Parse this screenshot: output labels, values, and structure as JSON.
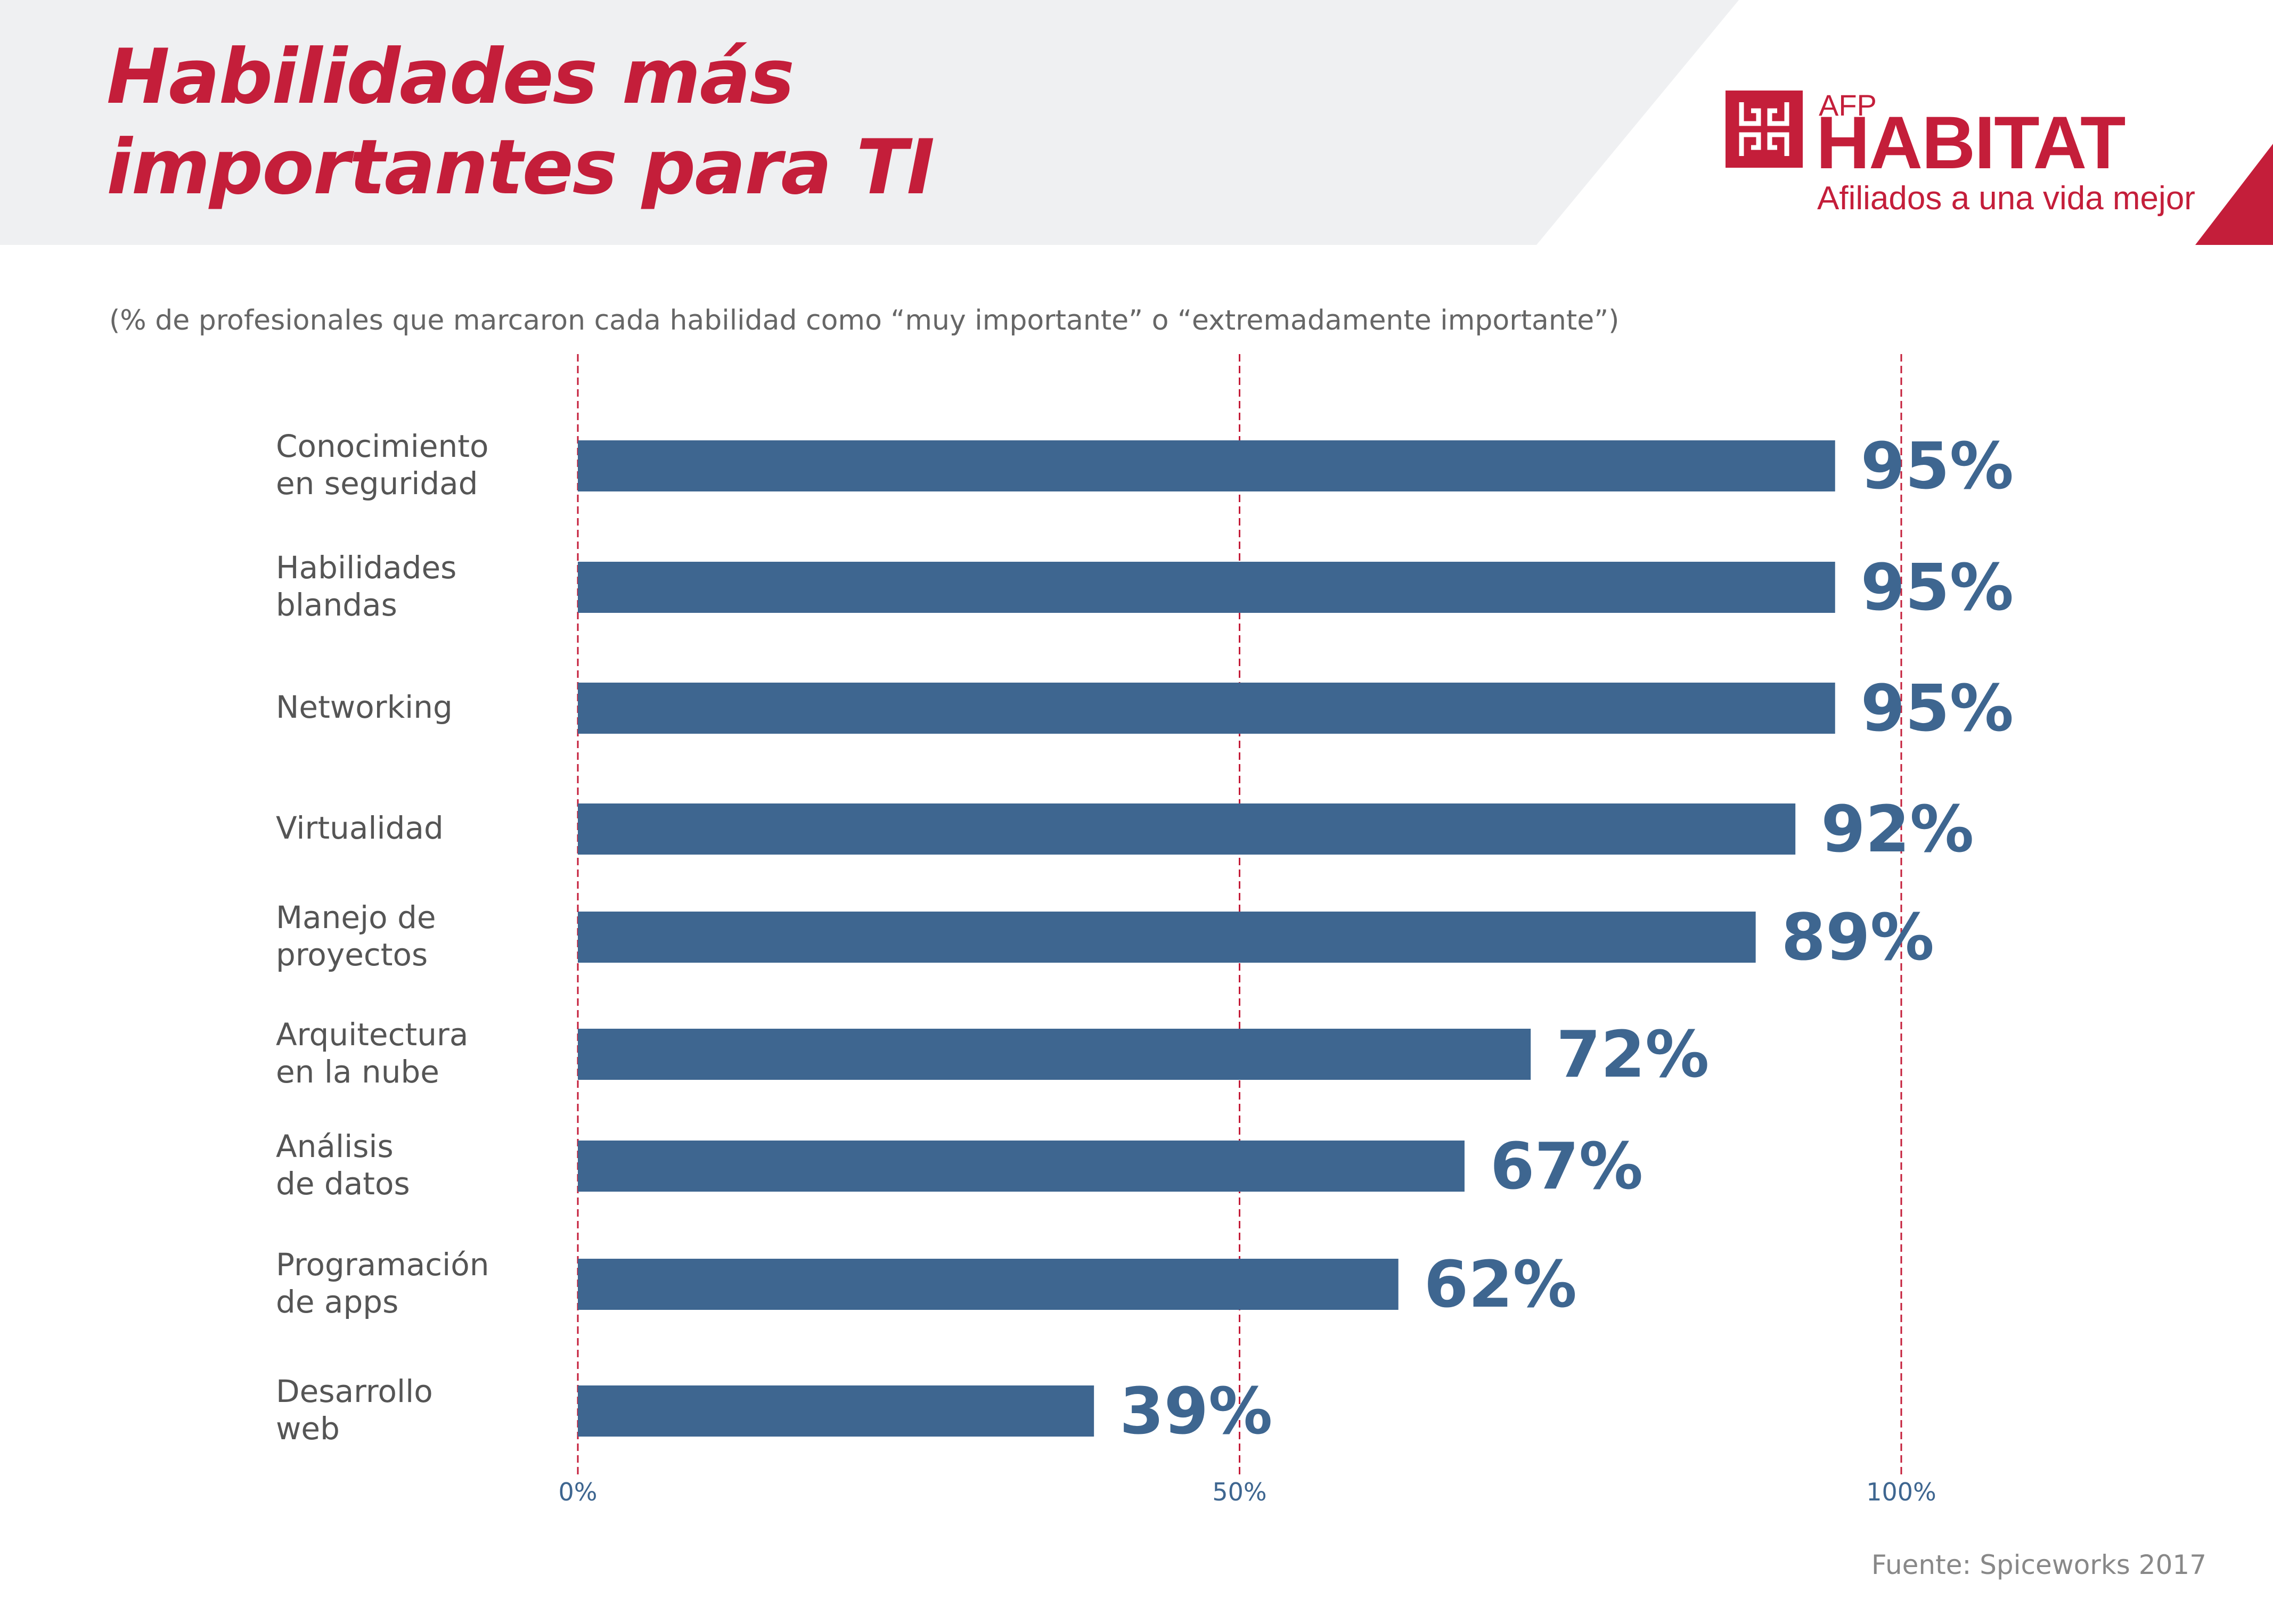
{
  "header": {
    "title_line1": "Habilidades más",
    "title_line2": "importantes para TI"
  },
  "logo": {
    "prefix": "AFP",
    "name": "HABITAT",
    "tagline": "Afiliados a una vida mejor"
  },
  "subtitle": "(% de profesionales que marcaron cada habilidad como “muy importante” o “extremadamente importante”)",
  "source": "Fuente: Spiceworks 2017",
  "colors": {
    "brand_red": "#c41e3a",
    "bar_blue": "#3e6690",
    "header_bg": "#eff0f2",
    "gridline_red": "#c41e3a"
  },
  "chart_data": {
    "type": "bar",
    "orientation": "horizontal",
    "categories": [
      [
        "Conocimiento",
        "en seguridad"
      ],
      [
        "Habilidades",
        "blandas"
      ],
      [
        "Networking"
      ],
      [
        "Virtualidad"
      ],
      [
        "Manejo de",
        "proyectos"
      ],
      [
        "Arquitectura",
        "en la nube"
      ],
      [
        "Análisis",
        "de datos"
      ],
      [
        "Programación",
        "de apps"
      ],
      [
        "Desarrollo",
        "web"
      ]
    ],
    "values": [
      95,
      95,
      95,
      92,
      89,
      72,
      67,
      62,
      39
    ],
    "value_labels": [
      "95%",
      "95%",
      "95%",
      "92%",
      "89%",
      "72%",
      "67%",
      "62%",
      "39%"
    ],
    "xlim": [
      0,
      100
    ],
    "x_ticks": [
      0,
      50,
      100
    ],
    "x_tick_labels": [
      "0%",
      "50%",
      "100%"
    ],
    "gridlines": "dashed at 0%, 50%, 100%",
    "legend": "none"
  }
}
